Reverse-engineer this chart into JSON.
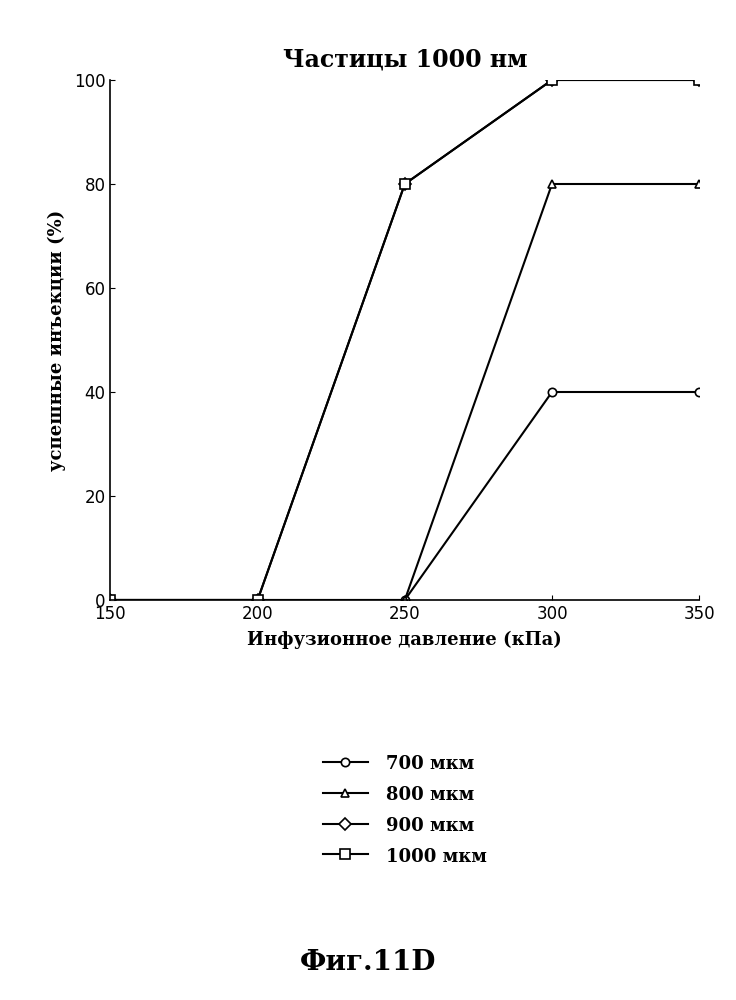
{
  "title": "Частицы 1000 нм",
  "xlabel": "Инфузионное давление (кПа)",
  "ylabel": "успешные инъекции (%)",
  "xlim": [
    150,
    350
  ],
  "ylim": [
    0,
    100
  ],
  "xticks": [
    150,
    200,
    250,
    300,
    350
  ],
  "yticks": [
    0,
    20,
    40,
    60,
    80,
    100
  ],
  "series": [
    {
      "label": "700 мкм",
      "x": [
        150,
        200,
        250,
        300,
        350
      ],
      "y": [
        0,
        0,
        0,
        40,
        40
      ],
      "color": "#000000",
      "marker": "o",
      "linestyle": "-"
    },
    {
      "label": "800 мкм",
      "x": [
        150,
        200,
        250,
        300,
        350
      ],
      "y": [
        0,
        0,
        0,
        80,
        80
      ],
      "color": "#000000",
      "marker": "^",
      "linestyle": "-"
    },
    {
      "label": "900 мкм",
      "x": [
        150,
        200,
        250,
        300,
        350
      ],
      "y": [
        0,
        0,
        80,
        100,
        100
      ],
      "color": "#000000",
      "marker": "D",
      "linestyle": "-"
    },
    {
      "label": "1000 мкм",
      "x": [
        150,
        200,
        250,
        300,
        350
      ],
      "y": [
        0,
        0,
        80,
        100,
        100
      ],
      "color": "#000000",
      "marker": "s",
      "linestyle": "-"
    }
  ],
  "caption": "Фиг.11D",
  "background_color": "#ffffff",
  "title_fontsize": 17,
  "label_fontsize": 13,
  "tick_fontsize": 12,
  "legend_fontsize": 13,
  "caption_fontsize": 20
}
